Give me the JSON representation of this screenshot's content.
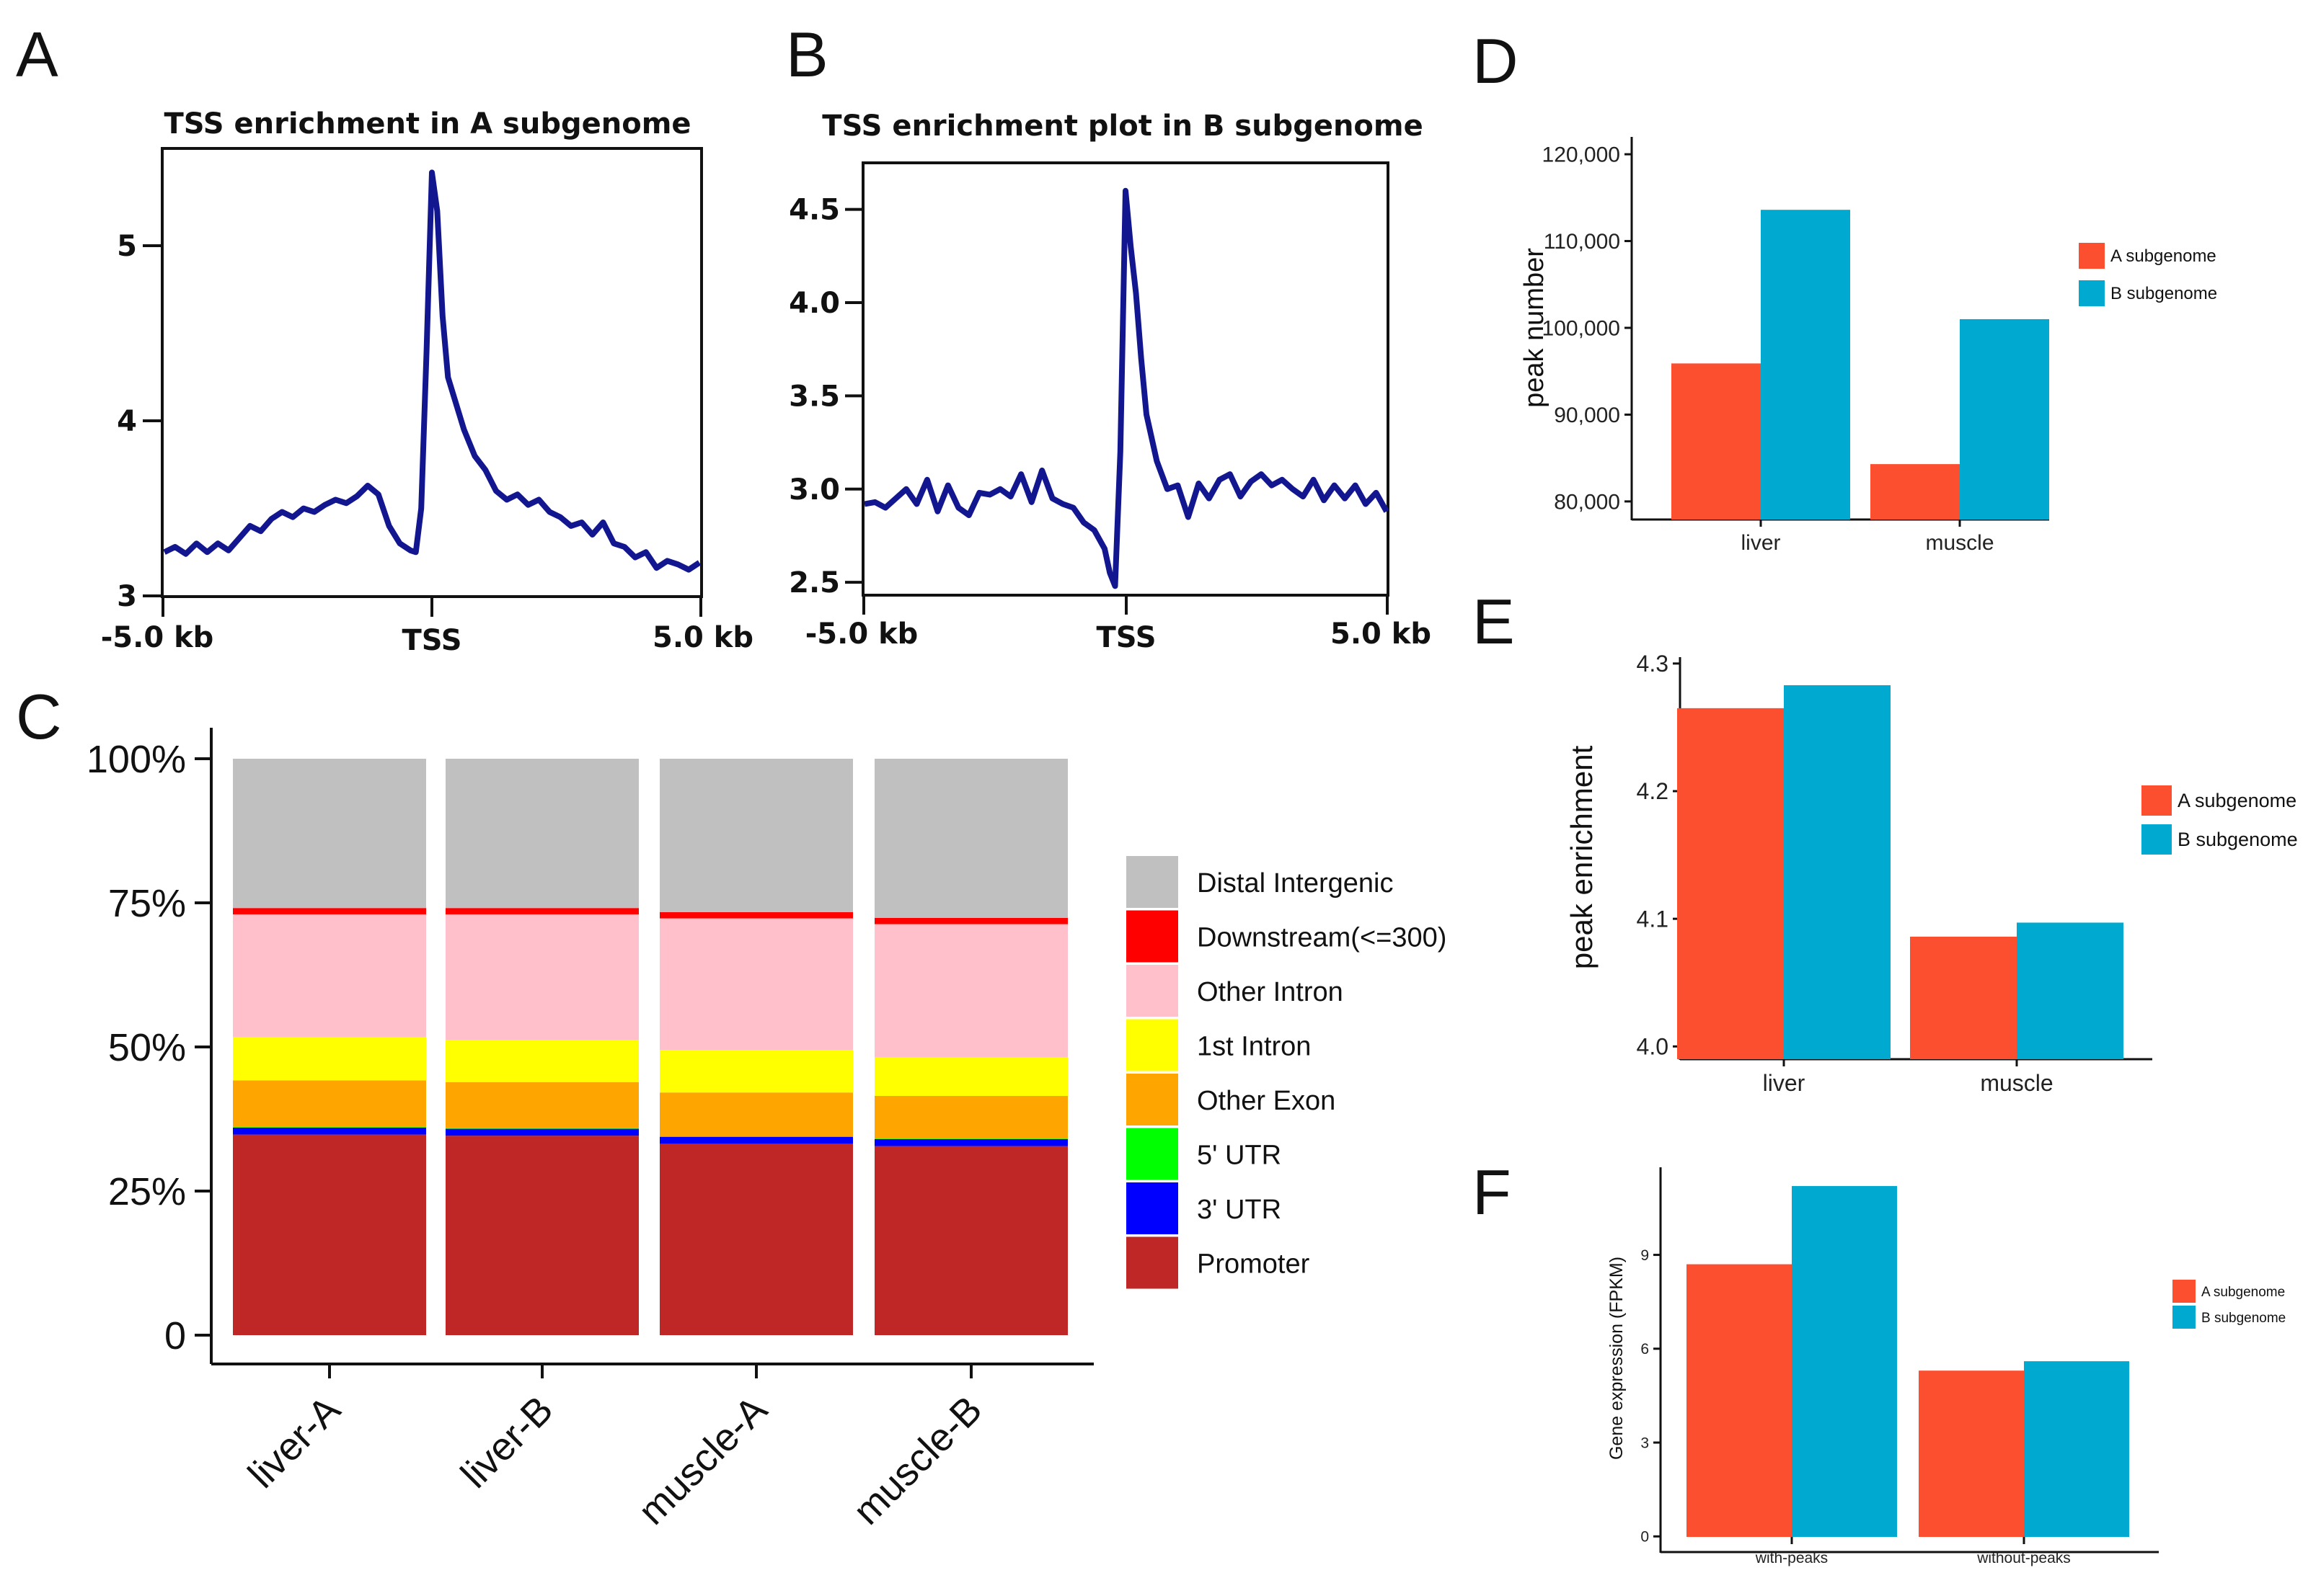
{
  "colors": {
    "line": "#13178f",
    "A": "#fc4f30",
    "B": "#00a9d0",
    "axis": "#111111"
  },
  "panels": {
    "A": "A",
    "B": "B",
    "C": "C",
    "D": "D",
    "E": "E",
    "F": "F"
  },
  "chart_data": [
    {
      "id": "A",
      "type": "line",
      "title": "TSS enrichment in A subgenome",
      "xticks": [
        "-5.0 kb",
        "TSS",
        "5.0 kb"
      ],
      "ylim": [
        3,
        5.5
      ],
      "yticks": [
        3,
        4,
        5
      ],
      "ytick_labels": [
        "3",
        "4",
        "5"
      ],
      "x": [
        -5.0,
        -4.8,
        -4.6,
        -4.4,
        -4.2,
        -4.0,
        -3.8,
        -3.6,
        -3.4,
        -3.2,
        -3.0,
        -2.8,
        -2.6,
        -2.4,
        -2.2,
        -2.0,
        -1.8,
        -1.6,
        -1.4,
        -1.2,
        -1.0,
        -0.8,
        -0.6,
        -0.4,
        -0.3,
        -0.2,
        -0.1,
        0.0,
        0.1,
        0.2,
        0.3,
        0.4,
        0.6,
        0.8,
        1.0,
        1.2,
        1.4,
        1.6,
        1.8,
        2.0,
        2.2,
        2.4,
        2.6,
        2.8,
        3.0,
        3.2,
        3.4,
        3.6,
        3.8,
        4.0,
        4.2,
        4.4,
        4.6,
        4.8,
        5.0
      ],
      "y": [
        3.25,
        3.28,
        3.24,
        3.3,
        3.25,
        3.3,
        3.26,
        3.33,
        3.4,
        3.37,
        3.44,
        3.48,
        3.45,
        3.5,
        3.48,
        3.52,
        3.55,
        3.53,
        3.57,
        3.63,
        3.58,
        3.4,
        3.3,
        3.26,
        3.25,
        3.5,
        4.4,
        5.42,
        5.2,
        4.6,
        4.25,
        4.15,
        3.95,
        3.8,
        3.72,
        3.6,
        3.55,
        3.58,
        3.52,
        3.55,
        3.48,
        3.45,
        3.4,
        3.42,
        3.35,
        3.42,
        3.3,
        3.28,
        3.22,
        3.25,
        3.16,
        3.2,
        3.18,
        3.15,
        3.19
      ],
      "xlabel": "",
      "ylabel": ""
    },
    {
      "id": "B",
      "type": "line",
      "title": "TSS enrichment plot in B subgenome",
      "xticks": [
        "-5.0 kb",
        "TSS",
        "5.0 kb"
      ],
      "ylim": [
        2.4,
        4.75
      ],
      "yticks": [
        2.5,
        3.0,
        3.5,
        4.0,
        4.5
      ],
      "ytick_labels": [
        "2.5",
        "3.0",
        "3.5",
        "4.0",
        "4.5"
      ],
      "x": [
        -5.0,
        -4.8,
        -4.6,
        -4.4,
        -4.2,
        -4.0,
        -3.8,
        -3.6,
        -3.4,
        -3.2,
        -3.0,
        -2.8,
        -2.6,
        -2.4,
        -2.2,
        -2.0,
        -1.8,
        -1.6,
        -1.4,
        -1.2,
        -1.0,
        -0.8,
        -0.6,
        -0.4,
        -0.3,
        -0.2,
        -0.1,
        0.0,
        0.1,
        0.2,
        0.3,
        0.4,
        0.6,
        0.8,
        1.0,
        1.2,
        1.4,
        1.6,
        1.8,
        2.0,
        2.2,
        2.4,
        2.6,
        2.8,
        3.0,
        3.2,
        3.4,
        3.6,
        3.8,
        4.0,
        4.2,
        4.4,
        4.6,
        4.8,
        5.0
      ],
      "y": [
        2.92,
        2.93,
        2.9,
        2.95,
        3.0,
        2.92,
        3.05,
        2.88,
        3.02,
        2.9,
        2.86,
        2.98,
        2.97,
        3.0,
        2.96,
        3.08,
        2.93,
        3.1,
        2.95,
        2.92,
        2.9,
        2.82,
        2.78,
        2.68,
        2.55,
        2.48,
        3.2,
        4.6,
        4.3,
        4.05,
        3.7,
        3.4,
        3.15,
        3.0,
        3.02,
        2.85,
        3.03,
        2.95,
        3.05,
        3.08,
        2.96,
        3.04,
        3.08,
        3.02,
        3.05,
        3.0,
        2.96,
        3.05,
        2.94,
        3.02,
        2.95,
        3.02,
        2.92,
        2.98,
        2.88
      ],
      "xlabel": "",
      "ylabel": ""
    },
    {
      "id": "C",
      "type": "bar",
      "stacked": true,
      "categories": [
        "liver-A",
        "liver-B",
        "muscle-A",
        "muscle-B"
      ],
      "yticks": [
        0,
        25,
        50,
        75,
        100
      ],
      "ytick_labels": [
        "0",
        "25%",
        "50%",
        "75%",
        "100%"
      ],
      "ylim": [
        0,
        100
      ],
      "legend": [
        "Distal Intergenic",
        "Downstream(<=300)",
        "Other Intron",
        "1st Intron",
        "Other Exon",
        "5' UTR",
        "3' UTR",
        "Promoter"
      ],
      "legend_colors": [
        "#c0c0c0",
        "#ff0000",
        "#ffc0cb",
        "#ffff00",
        "#ffa500",
        "#00ff00",
        "#0000ff",
        "#bf2626"
      ],
      "series": [
        {
          "name": "Promoter",
          "color": "#bf2626",
          "values": [
            34.8,
            34.6,
            33.2,
            32.8
          ]
        },
        {
          "name": "3' UTR",
          "color": "#0000ff",
          "values": [
            1.2,
            1.2,
            1.2,
            1.2
          ]
        },
        {
          "name": "5' UTR",
          "color": "#00ff00",
          "values": [
            0.1,
            0.1,
            0.1,
            0.1
          ]
        },
        {
          "name": "Other Exon",
          "color": "#ffa500",
          "values": [
            8.1,
            8.0,
            7.6,
            7.4
          ]
        },
        {
          "name": "1st Intron",
          "color": "#ffff00",
          "values": [
            7.5,
            7.3,
            7.4,
            6.7
          ]
        },
        {
          "name": "Other Intron",
          "color": "#ffc0cb",
          "values": [
            21.3,
            21.8,
            22.8,
            23.1
          ]
        },
        {
          "name": "Downstream(<=300)",
          "color": "#ff0000",
          "values": [
            1.1,
            1.1,
            1.1,
            1.1
          ]
        },
        {
          "name": "Distal Intergenic",
          "color": "#c0c0c0",
          "values": [
            25.9,
            25.9,
            26.6,
            27.6
          ]
        }
      ],
      "xlabel": "",
      "ylabel": ""
    },
    {
      "id": "D",
      "type": "bar",
      "categories": [
        "liver",
        "muscle"
      ],
      "series": [
        {
          "name": "A subgenome",
          "values": [
            95900,
            84300
          ]
        },
        {
          "name": "B subgenome",
          "values": [
            113600,
            101000
          ]
        }
      ],
      "ylim": [
        78000,
        122000
      ],
      "yticks": [
        80000,
        90000,
        100000,
        110000,
        120000
      ],
      "ytick_labels": [
        "80,000",
        "90,000",
        "100,000",
        "110,000",
        "120,000"
      ],
      "xlabel": "",
      "ylabel": "peak number"
    },
    {
      "id": "E",
      "type": "bar",
      "categories": [
        "liver",
        "muscle"
      ],
      "series": [
        {
          "name": "A subgenome",
          "values": [
            4.265,
            4.086
          ]
        },
        {
          "name": "B subgenome",
          "values": [
            4.283,
            4.097
          ]
        }
      ],
      "ylim": [
        3.99,
        4.305
      ],
      "yticks": [
        4.0,
        4.1,
        4.2,
        4.3
      ],
      "ytick_labels": [
        "4.0",
        "4.1",
        "4.2",
        "4.3"
      ],
      "xlabel": "",
      "ylabel": "peak enrichment"
    },
    {
      "id": "F",
      "type": "bar",
      "categories": [
        "with-peaks",
        "without-peaks"
      ],
      "series": [
        {
          "name": "A subgenome",
          "values": [
            8.7,
            5.3
          ]
        },
        {
          "name": "B subgenome",
          "values": [
            11.2,
            5.6
          ]
        }
      ],
      "ylim": [
        -0.5,
        11.8
      ],
      "yticks": [
        0,
        3,
        6,
        9
      ],
      "ytick_labels": [
        "0",
        "3",
        "6",
        "9"
      ],
      "xlabel": "",
      "ylabel": "Gene expression (FPKM)"
    }
  ]
}
